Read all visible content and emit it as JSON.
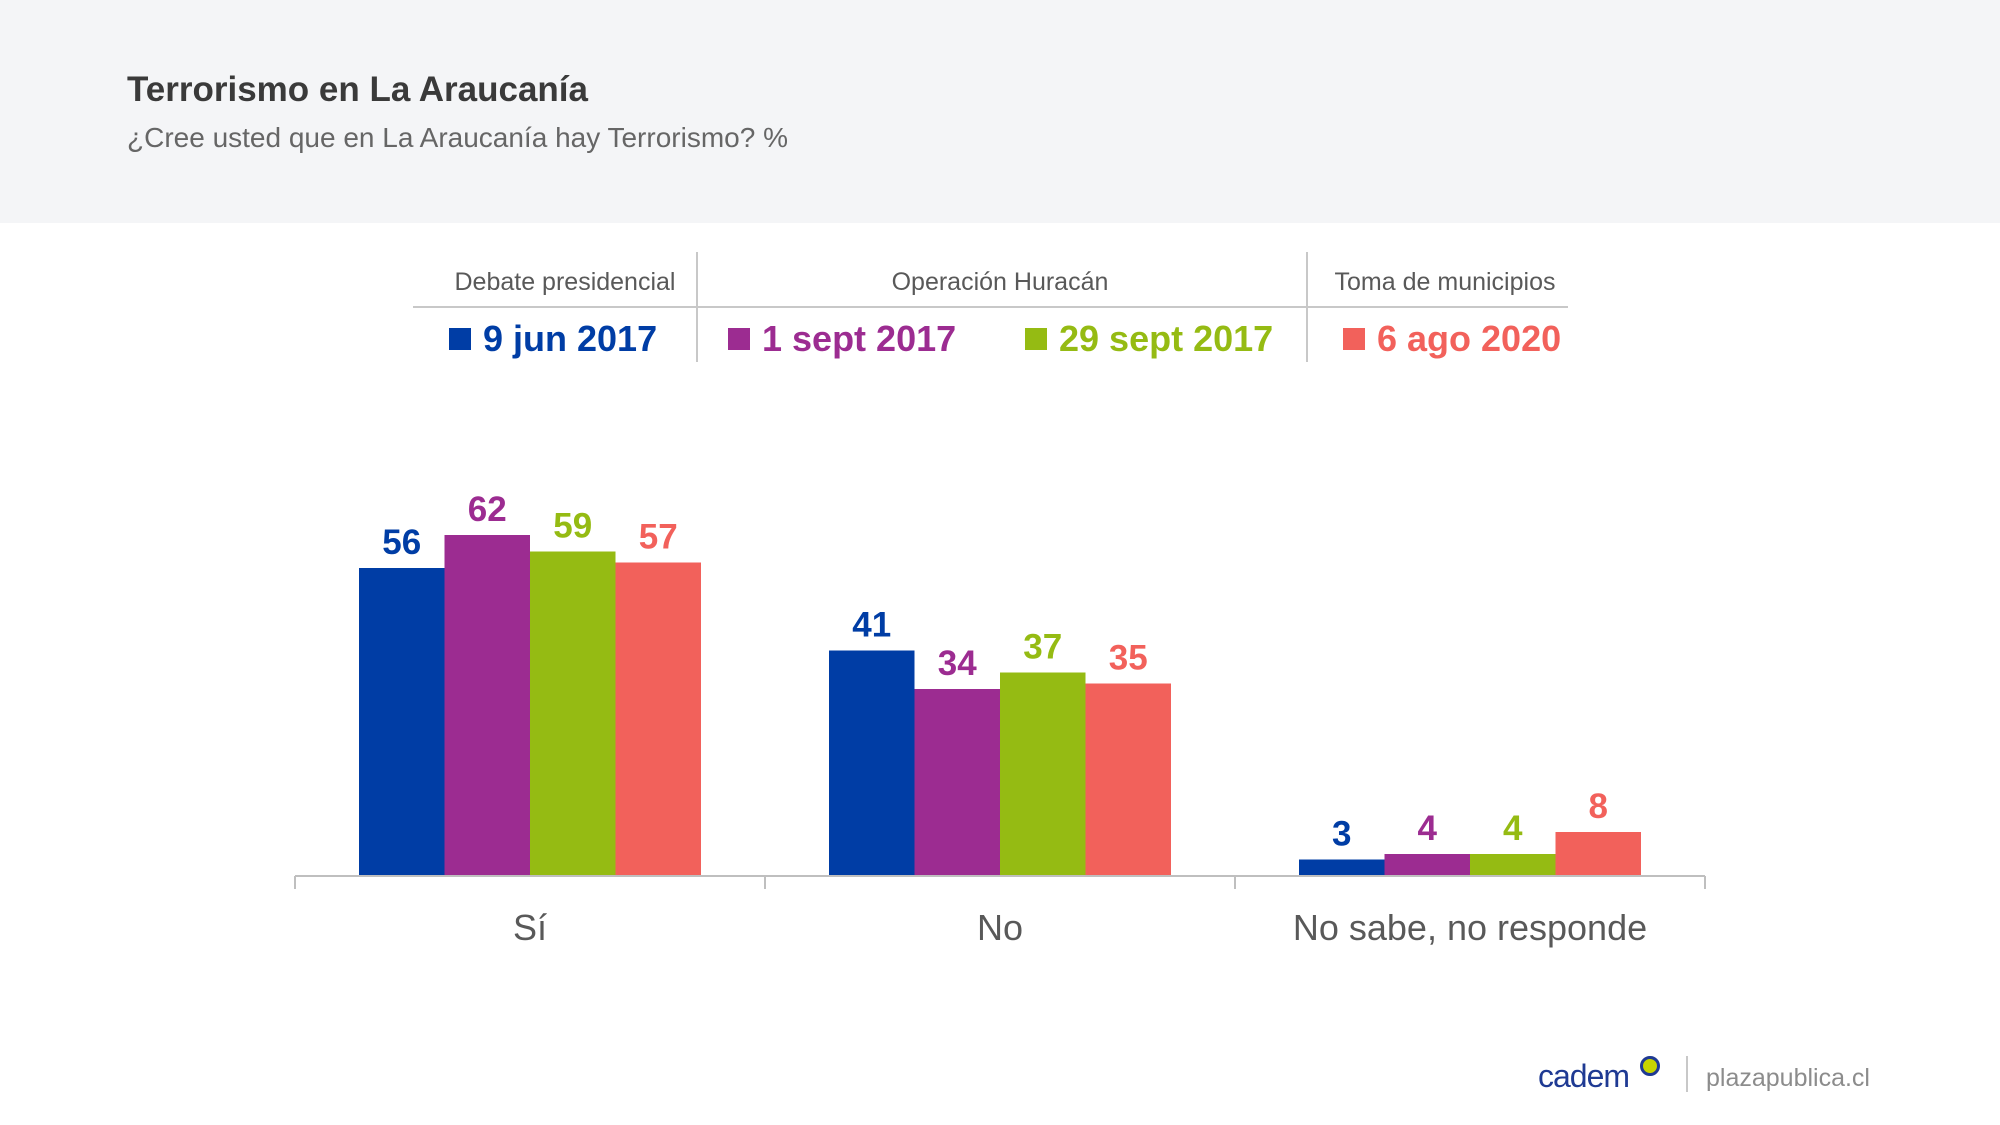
{
  "title": "Terrorismo en La Araucanía",
  "subtitle": "¿Cree usted que en La Araucanía hay Terrorismo? %",
  "legend": {
    "events": [
      "Debate presidencial",
      "Operación Huracán",
      "Toma de municipios"
    ]
  },
  "footer": {
    "logo": "cadem",
    "site": "plazapublica.cl"
  },
  "chart_data": {
    "type": "bar",
    "title": "Terrorismo en La Araucanía",
    "subtitle": "¿Cree usted que en La Araucanía hay Terrorismo? %",
    "categories": [
      "Sí",
      "No",
      "No sabe, no responde"
    ],
    "series": [
      {
        "name": "9 jun 2017",
        "color": "#003da5",
        "values": [
          56,
          41,
          3
        ]
      },
      {
        "name": "1 sept 2017",
        "color": "#9c2c91",
        "values": [
          62,
          34,
          4
        ]
      },
      {
        "name": "29 sept 2017",
        "color": "#95bb13",
        "values": [
          59,
          37,
          4
        ]
      },
      {
        "name": "6 ago 2020",
        "color": "#f2615b",
        "values": [
          57,
          35,
          8
        ]
      }
    ],
    "ylim": [
      0,
      70
    ],
    "grid": false,
    "legend_position": "top"
  }
}
